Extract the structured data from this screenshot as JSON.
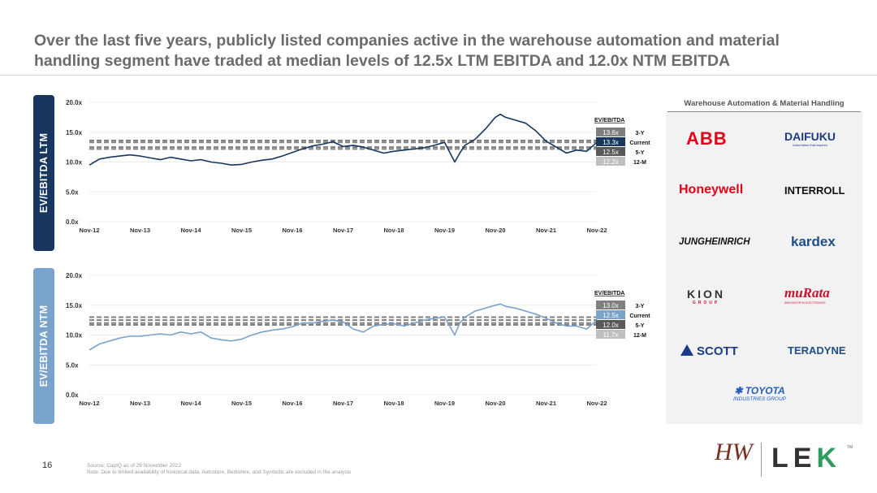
{
  "title_line1": "Over the last five years, publicly listed companies active in the warehouse automation and material",
  "title_line2": "handling segment have traded at median levels of 12.5x LTM EBITDA and 12.0x NTM EBITDA",
  "page_number": "16",
  "footnote_source": "Source: CapIQ as of 29 November 2022",
  "footnote_note": "Note: Due to limited availability of historical data, Autostore, Berkshire, and Symbotic are excluded in the analysis",
  "logo_panel": {
    "header": "Warehouse Automation & Material Handling",
    "logos": [
      "ABB",
      "DAIFUKU",
      "Honeywell",
      "INTERROLL",
      "JUNGHEINRICH",
      "kardex",
      "KION",
      "muRata",
      "SCOTT",
      "TERADYNE",
      "TOYOTA"
    ],
    "logo_taglines": {
      "DAIFUKU": "Automation that inspires",
      "KION": "GROUP",
      "muRata": "INNOVATOR IN ELECTRONICS",
      "TOYOTA": "INDUSTRIES GROUP"
    }
  },
  "brand": {
    "left": "HW",
    "right": "LEK",
    "tm": "TM"
  },
  "colors": {
    "ltm": "#17375e",
    "ntm": "#7aa3cc",
    "dash": "#7f7f7f",
    "lek_green": "#2e9c5c"
  },
  "chart_data": [
    {
      "type": "line",
      "side_label": "EV/EBITDA LTM",
      "x_tick_labels": [
        "Nov-12",
        "Nov-13",
        "Nov-14",
        "Nov-15",
        "Nov-16",
        "Nov-17",
        "Nov-18",
        "Nov-19",
        "Nov-20",
        "Nov-21",
        "Nov-22"
      ],
      "y_tick_labels": [
        "0.0x",
        "5.0x",
        "10.0x",
        "15.0x",
        "20.0x"
      ],
      "ylim": [
        0,
        20
      ],
      "x": [
        2012.9,
        2013.1,
        2013.3,
        2013.5,
        2013.7,
        2013.9,
        2014.1,
        2014.3,
        2014.5,
        2014.7,
        2014.9,
        2015.1,
        2015.3,
        2015.5,
        2015.7,
        2015.9,
        2016.1,
        2016.3,
        2016.5,
        2016.7,
        2016.9,
        2017.1,
        2017.3,
        2017.5,
        2017.7,
        2017.9,
        2018.1,
        2018.3,
        2018.5,
        2018.7,
        2018.9,
        2019.1,
        2019.3,
        2019.5,
        2019.7,
        2019.9,
        2020.1,
        2020.2,
        2020.3,
        2020.5,
        2020.7,
        2020.9,
        2021.0,
        2021.1,
        2021.3,
        2021.5,
        2021.7,
        2021.9,
        2022.1,
        2022.3,
        2022.5,
        2022.7,
        2022.9
      ],
      "series": [
        {
          "values": [
            9.5,
            10.5,
            10.8,
            11.0,
            11.2,
            11.0,
            10.7,
            10.4,
            10.8,
            10.5,
            10.2,
            10.4,
            10.0,
            9.8,
            9.5,
            9.6,
            10.0,
            10.3,
            10.5,
            11.0,
            11.6,
            12.2,
            12.7,
            13.0,
            13.4,
            12.6,
            12.8,
            12.5,
            12.0,
            11.5,
            11.8,
            12.0,
            12.2,
            12.4,
            12.8,
            13.3,
            10.0,
            11.5,
            12.8,
            13.8,
            15.5,
            17.5,
            18.0,
            17.5,
            17.0,
            16.5,
            15.2,
            13.5,
            12.5,
            11.5,
            12.0,
            11.8,
            13.3
          ]
        }
      ],
      "ev_ebitda_header": "EV/EBITDA",
      "reference_lines": [
        {
          "label": "3-Y",
          "value": 13.6,
          "value_label": "13.6x"
        },
        {
          "label": "Current",
          "value": 13.3,
          "value_label": "13.3x"
        },
        {
          "label": "5-Y",
          "value": 12.5,
          "value_label": "12.5x"
        },
        {
          "label": "12-M",
          "value": 12.2,
          "value_label": "12.2x"
        }
      ],
      "badge_colors": [
        "#7f7f7f",
        "#17375e",
        "#595959",
        "#bfbfbf"
      ]
    },
    {
      "type": "line",
      "side_label": "EV/EBITDA NTM",
      "x_tick_labels": [
        "Nov-12",
        "Nov-13",
        "Nov-14",
        "Nov-15",
        "Nov-16",
        "Nov-17",
        "Nov-18",
        "Nov-19",
        "Nov-20",
        "Nov-21",
        "Nov-22"
      ],
      "y_tick_labels": [
        "0.0x",
        "5.0x",
        "10.0x",
        "15.0x",
        "20.0x"
      ],
      "ylim": [
        0,
        20
      ],
      "x": [
        2012.9,
        2013.1,
        2013.3,
        2013.5,
        2013.7,
        2013.9,
        2014.1,
        2014.3,
        2014.5,
        2014.7,
        2014.9,
        2015.1,
        2015.3,
        2015.5,
        2015.7,
        2015.9,
        2016.1,
        2016.3,
        2016.5,
        2016.7,
        2016.9,
        2017.1,
        2017.3,
        2017.5,
        2017.7,
        2017.9,
        2018.1,
        2018.3,
        2018.5,
        2018.7,
        2018.9,
        2019.1,
        2019.3,
        2019.5,
        2019.7,
        2019.9,
        2020.1,
        2020.2,
        2020.3,
        2020.5,
        2020.7,
        2020.9,
        2021.0,
        2021.1,
        2021.3,
        2021.5,
        2021.7,
        2021.9,
        2022.1,
        2022.3,
        2022.5,
        2022.7,
        2022.9
      ],
      "series": [
        {
          "values": [
            7.5,
            8.5,
            9.0,
            9.5,
            9.8,
            9.8,
            10.0,
            10.2,
            10.0,
            10.5,
            10.2,
            10.5,
            9.5,
            9.2,
            9.0,
            9.3,
            10.0,
            10.5,
            10.8,
            11.0,
            11.4,
            12.0,
            12.0,
            12.3,
            12.5,
            12.2,
            11.0,
            10.5,
            11.5,
            11.8,
            11.9,
            11.5,
            12.0,
            12.5,
            12.8,
            13.0,
            10.0,
            12.0,
            13.0,
            14.0,
            14.5,
            15.0,
            15.2,
            14.8,
            14.5,
            14.0,
            13.5,
            12.8,
            12.0,
            11.5,
            11.5,
            11.0,
            12.5
          ]
        }
      ],
      "ev_ebitda_header": "EV/EBITDA",
      "reference_lines": [
        {
          "label": "3-Y",
          "value": 13.0,
          "value_label": "13.0x"
        },
        {
          "label": "Current",
          "value": 12.5,
          "value_label": "12.5x"
        },
        {
          "label": "5-Y",
          "value": 12.0,
          "value_label": "12.0x"
        },
        {
          "label": "12-M",
          "value": 11.7,
          "value_label": "11.7x"
        }
      ],
      "badge_colors": [
        "#7f7f7f",
        "#7aa3cc",
        "#595959",
        "#bfbfbf"
      ]
    }
  ]
}
